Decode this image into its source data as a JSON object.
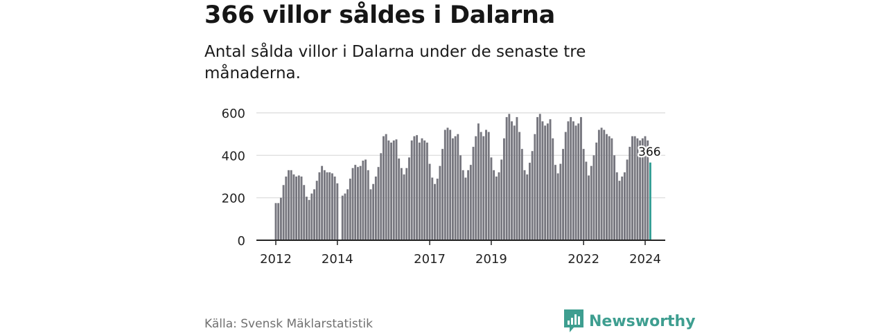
{
  "title": "366 villor såldes i Dalarna",
  "subtitle": "Antal sålda villor i Dalarna under de senaste tre månaderna.",
  "source": "Källa: Svensk Mäklarstatistik",
  "brand": "Newsworthy",
  "colors": {
    "bar": "#76767e",
    "highlight": "#2f9c92",
    "grid": "#d9d9d9",
    "axis": "#222222",
    "brand": "#3e9e90"
  },
  "chart_data": {
    "type": "bar",
    "title": "366 villor såldes i Dalarna",
    "subtitle": "Antal sålda villor i Dalarna under de senaste tre månaderna.",
    "x_unit": "month",
    "x_start": "2012-01",
    "x_end": "2024-01",
    "ylim": [
      0,
      600
    ],
    "yticks": [
      0,
      200,
      400,
      600
    ],
    "xticks": [
      {
        "label": "2012",
        "date": "2012-01"
      },
      {
        "label": "2014",
        "date": "2014-01"
      },
      {
        "label": "2017",
        "date": "2017-01"
      },
      {
        "label": "2019",
        "date": "2019-01"
      },
      {
        "label": "2022",
        "date": "2022-01"
      },
      {
        "label": "2024",
        "date": "2024-01"
      }
    ],
    "grid": true,
    "highlight_label": "366",
    "values": [
      175,
      175,
      200,
      260,
      300,
      330,
      330,
      310,
      300,
      305,
      300,
      260,
      205,
      190,
      220,
      240,
      280,
      320,
      350,
      330,
      320,
      320,
      315,
      300,
      268,
      null,
      210,
      220,
      240,
      290,
      340,
      355,
      345,
      350,
      375,
      380,
      330,
      240,
      265,
      300,
      345,
      410,
      490,
      500,
      470,
      460,
      470,
      475,
      385,
      340,
      310,
      340,
      390,
      470,
      490,
      495,
      460,
      480,
      470,
      460,
      360,
      295,
      265,
      290,
      350,
      430,
      520,
      530,
      520,
      480,
      490,
      500,
      400,
      330,
      295,
      330,
      355,
      440,
      490,
      550,
      510,
      490,
      520,
      510,
      390,
      330,
      300,
      320,
      380,
      480,
      580,
      595,
      560,
      540,
      580,
      510,
      430,
      330,
      310,
      365,
      420,
      500,
      580,
      595,
      560,
      540,
      550,
      570,
      480,
      355,
      315,
      360,
      430,
      510,
      560,
      580,
      560,
      540,
      550,
      580,
      430,
      370,
      305,
      350,
      400,
      460,
      520,
      530,
      520,
      500,
      490,
      480,
      400,
      320,
      280,
      300,
      320,
      380,
      440,
      490,
      490,
      480,
      470,
      480,
      490,
      470,
      366
    ]
  }
}
